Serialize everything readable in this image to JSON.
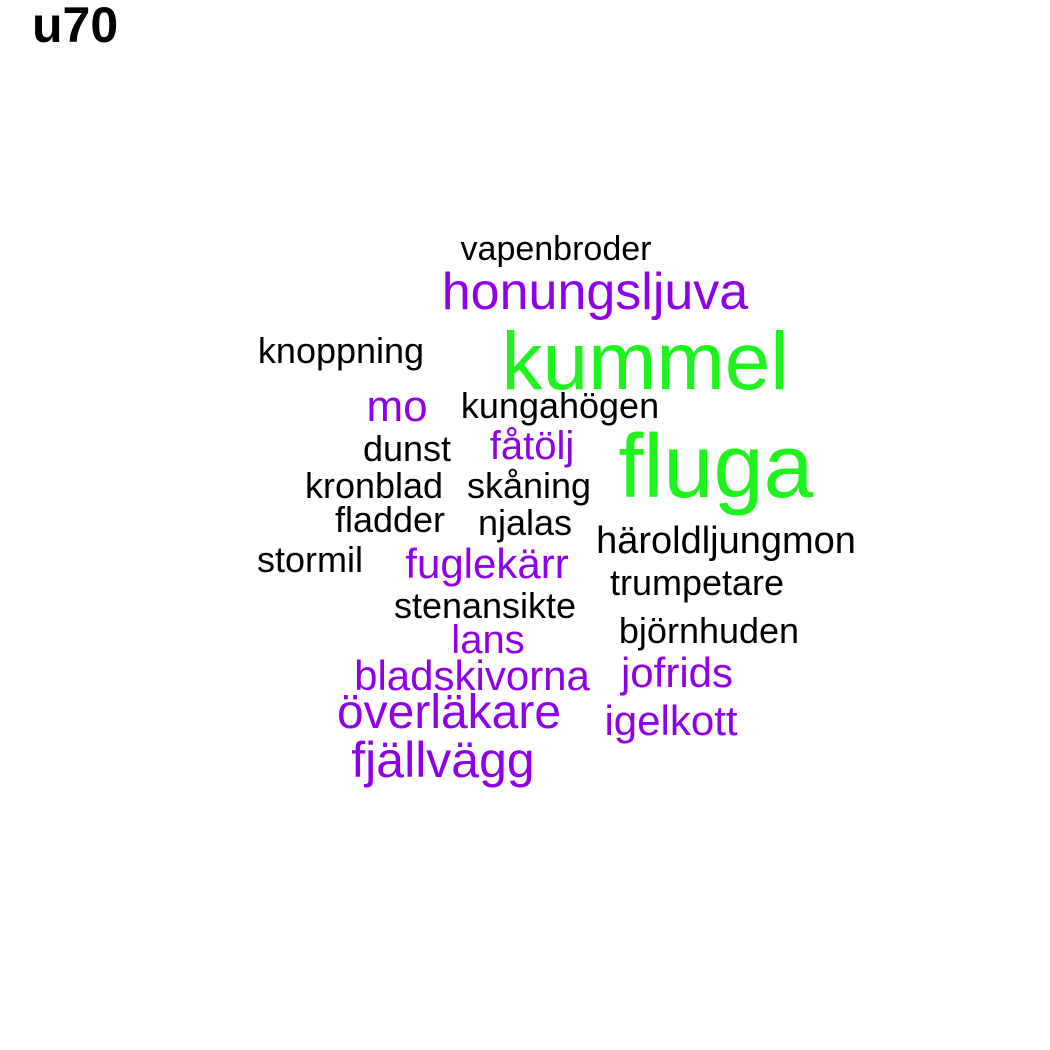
{
  "title": "u70",
  "colors": {
    "black": "#000000",
    "purple": "#8f00e8",
    "green": "#1ef31e"
  },
  "words": [
    {
      "text": "vapenbroder",
      "color": "black"
    },
    {
      "text": "honungsljuva",
      "color": "purple"
    },
    {
      "text": "knoppning",
      "color": "black"
    },
    {
      "text": "kummel",
      "color": "green"
    },
    {
      "text": "mo",
      "color": "purple"
    },
    {
      "text": "kungahögen",
      "color": "black"
    },
    {
      "text": "dunst",
      "color": "black"
    },
    {
      "text": "fåtölj",
      "color": "purple"
    },
    {
      "text": "fluga",
      "color": "green"
    },
    {
      "text": "kronblad",
      "color": "black"
    },
    {
      "text": "skåning",
      "color": "black"
    },
    {
      "text": "fladder",
      "color": "black"
    },
    {
      "text": "njalas",
      "color": "black"
    },
    {
      "text": "häroldljungmon",
      "color": "black"
    },
    {
      "text": "stormil",
      "color": "black"
    },
    {
      "text": "fuglekärr",
      "color": "purple"
    },
    {
      "text": "trumpetare",
      "color": "black"
    },
    {
      "text": "stenansikte",
      "color": "black"
    },
    {
      "text": "lans",
      "color": "purple"
    },
    {
      "text": "björnhuden",
      "color": "black"
    },
    {
      "text": "bladskivorna",
      "color": "purple"
    },
    {
      "text": "jofrids",
      "color": "purple"
    },
    {
      "text": "överläkare",
      "color": "purple"
    },
    {
      "text": "igelkott",
      "color": "purple"
    },
    {
      "text": "fjällvägg",
      "color": "purple"
    }
  ]
}
